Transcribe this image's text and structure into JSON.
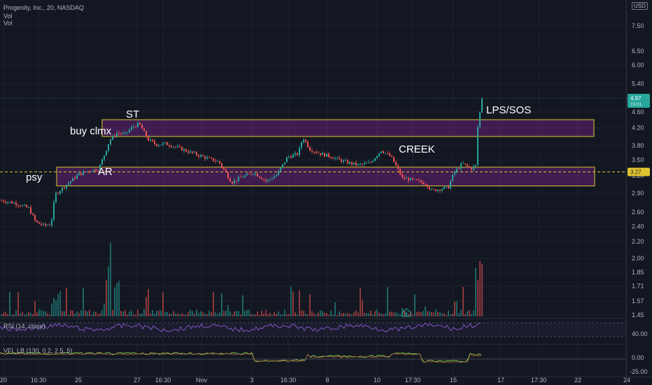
{
  "header": {
    "symbol_line": "Progenity, Inc., 20, NASDAQ",
    "vol_1": "Vol",
    "vol_2": "Vol",
    "currency": "USD"
  },
  "price_badges": {
    "last": "4.97",
    "last_sub": "15:01",
    "line_level": "3.27"
  },
  "indicators": {
    "rsi_label": "RSI (14, close)",
    "rsi_levels": [
      "40.00"
    ],
    "vfi_label": "VFI_LB (130, 0.2, 2.5, 5)",
    "vfi_levels": [
      "0.00",
      "-25.00"
    ]
  },
  "chart_data": {
    "type": "candlestick",
    "y_scale": "log",
    "price_axis_ticks": [
      "7.50",
      "6.50",
      "6.00",
      "5.40",
      "4.60",
      "4.20",
      "3.80",
      "3.50",
      "3.20",
      "2.90",
      "2.60",
      "2.40",
      "2.20",
      "2.00",
      "1.85",
      "1.71",
      "1.57",
      "1.45"
    ],
    "time_axis_ticks": [
      "20",
      "16:30",
      "25",
      "27",
      "16:30",
      "Nov",
      "3",
      "16:30",
      "8",
      "10",
      "17:30",
      "15",
      "17",
      "17:30",
      "22",
      "24"
    ],
    "horizontal_level": 3.27,
    "trading_ranges": [
      {
        "top": 4.4,
        "bottom": 4.0
      },
      {
        "top": 3.36,
        "bottom": 3.02
      }
    ],
    "annotations": [
      "ST",
      "buy clmx",
      "psy",
      "AR",
      "CREEK",
      "LPS/SOS"
    ],
    "price_path": [
      [
        0,
        2.78
      ],
      [
        20,
        2.74
      ],
      [
        40,
        2.66
      ],
      [
        50,
        2.46
      ],
      [
        62,
        2.41
      ],
      [
        72,
        2.43
      ],
      [
        78,
        2.88
      ],
      [
        92,
        3.02
      ],
      [
        112,
        3.23
      ],
      [
        128,
        3.3
      ],
      [
        140,
        3.32
      ],
      [
        148,
        3.6
      ],
      [
        156,
        3.92
      ],
      [
        166,
        4.08
      ],
      [
        178,
        4.05
      ],
      [
        188,
        4.22
      ],
      [
        198,
        4.3
      ],
      [
        210,
        3.94
      ],
      [
        222,
        3.82
      ],
      [
        236,
        3.84
      ],
      [
        252,
        3.76
      ],
      [
        270,
        3.66
      ],
      [
        290,
        3.56
      ],
      [
        312,
        3.46
      ],
      [
        330,
        3.08
      ],
      [
        345,
        3.18
      ],
      [
        362,
        3.26
      ],
      [
        380,
        3.1
      ],
      [
        395,
        3.22
      ],
      [
        410,
        3.56
      ],
      [
        425,
        3.62
      ],
      [
        432,
        3.98
      ],
      [
        442,
        3.72
      ],
      [
        458,
        3.62
      ],
      [
        470,
        3.58
      ],
      [
        490,
        3.47
      ],
      [
        510,
        3.4
      ],
      [
        528,
        3.44
      ],
      [
        544,
        3.7
      ],
      [
        558,
        3.56
      ],
      [
        574,
        3.16
      ],
      [
        590,
        3.12
      ],
      [
        608,
        3.06
      ],
      [
        616,
        2.94
      ],
      [
        628,
        2.97
      ],
      [
        640,
        3.0
      ],
      [
        648,
        3.26
      ],
      [
        660,
        3.43
      ],
      [
        672,
        3.33
      ],
      [
        680,
        3.4
      ],
      [
        682,
        4.22
      ],
      [
        688,
        4.97
      ]
    ],
    "rsi_levels": [
      40
    ],
    "vfi_levels": [
      0,
      -25
    ]
  }
}
